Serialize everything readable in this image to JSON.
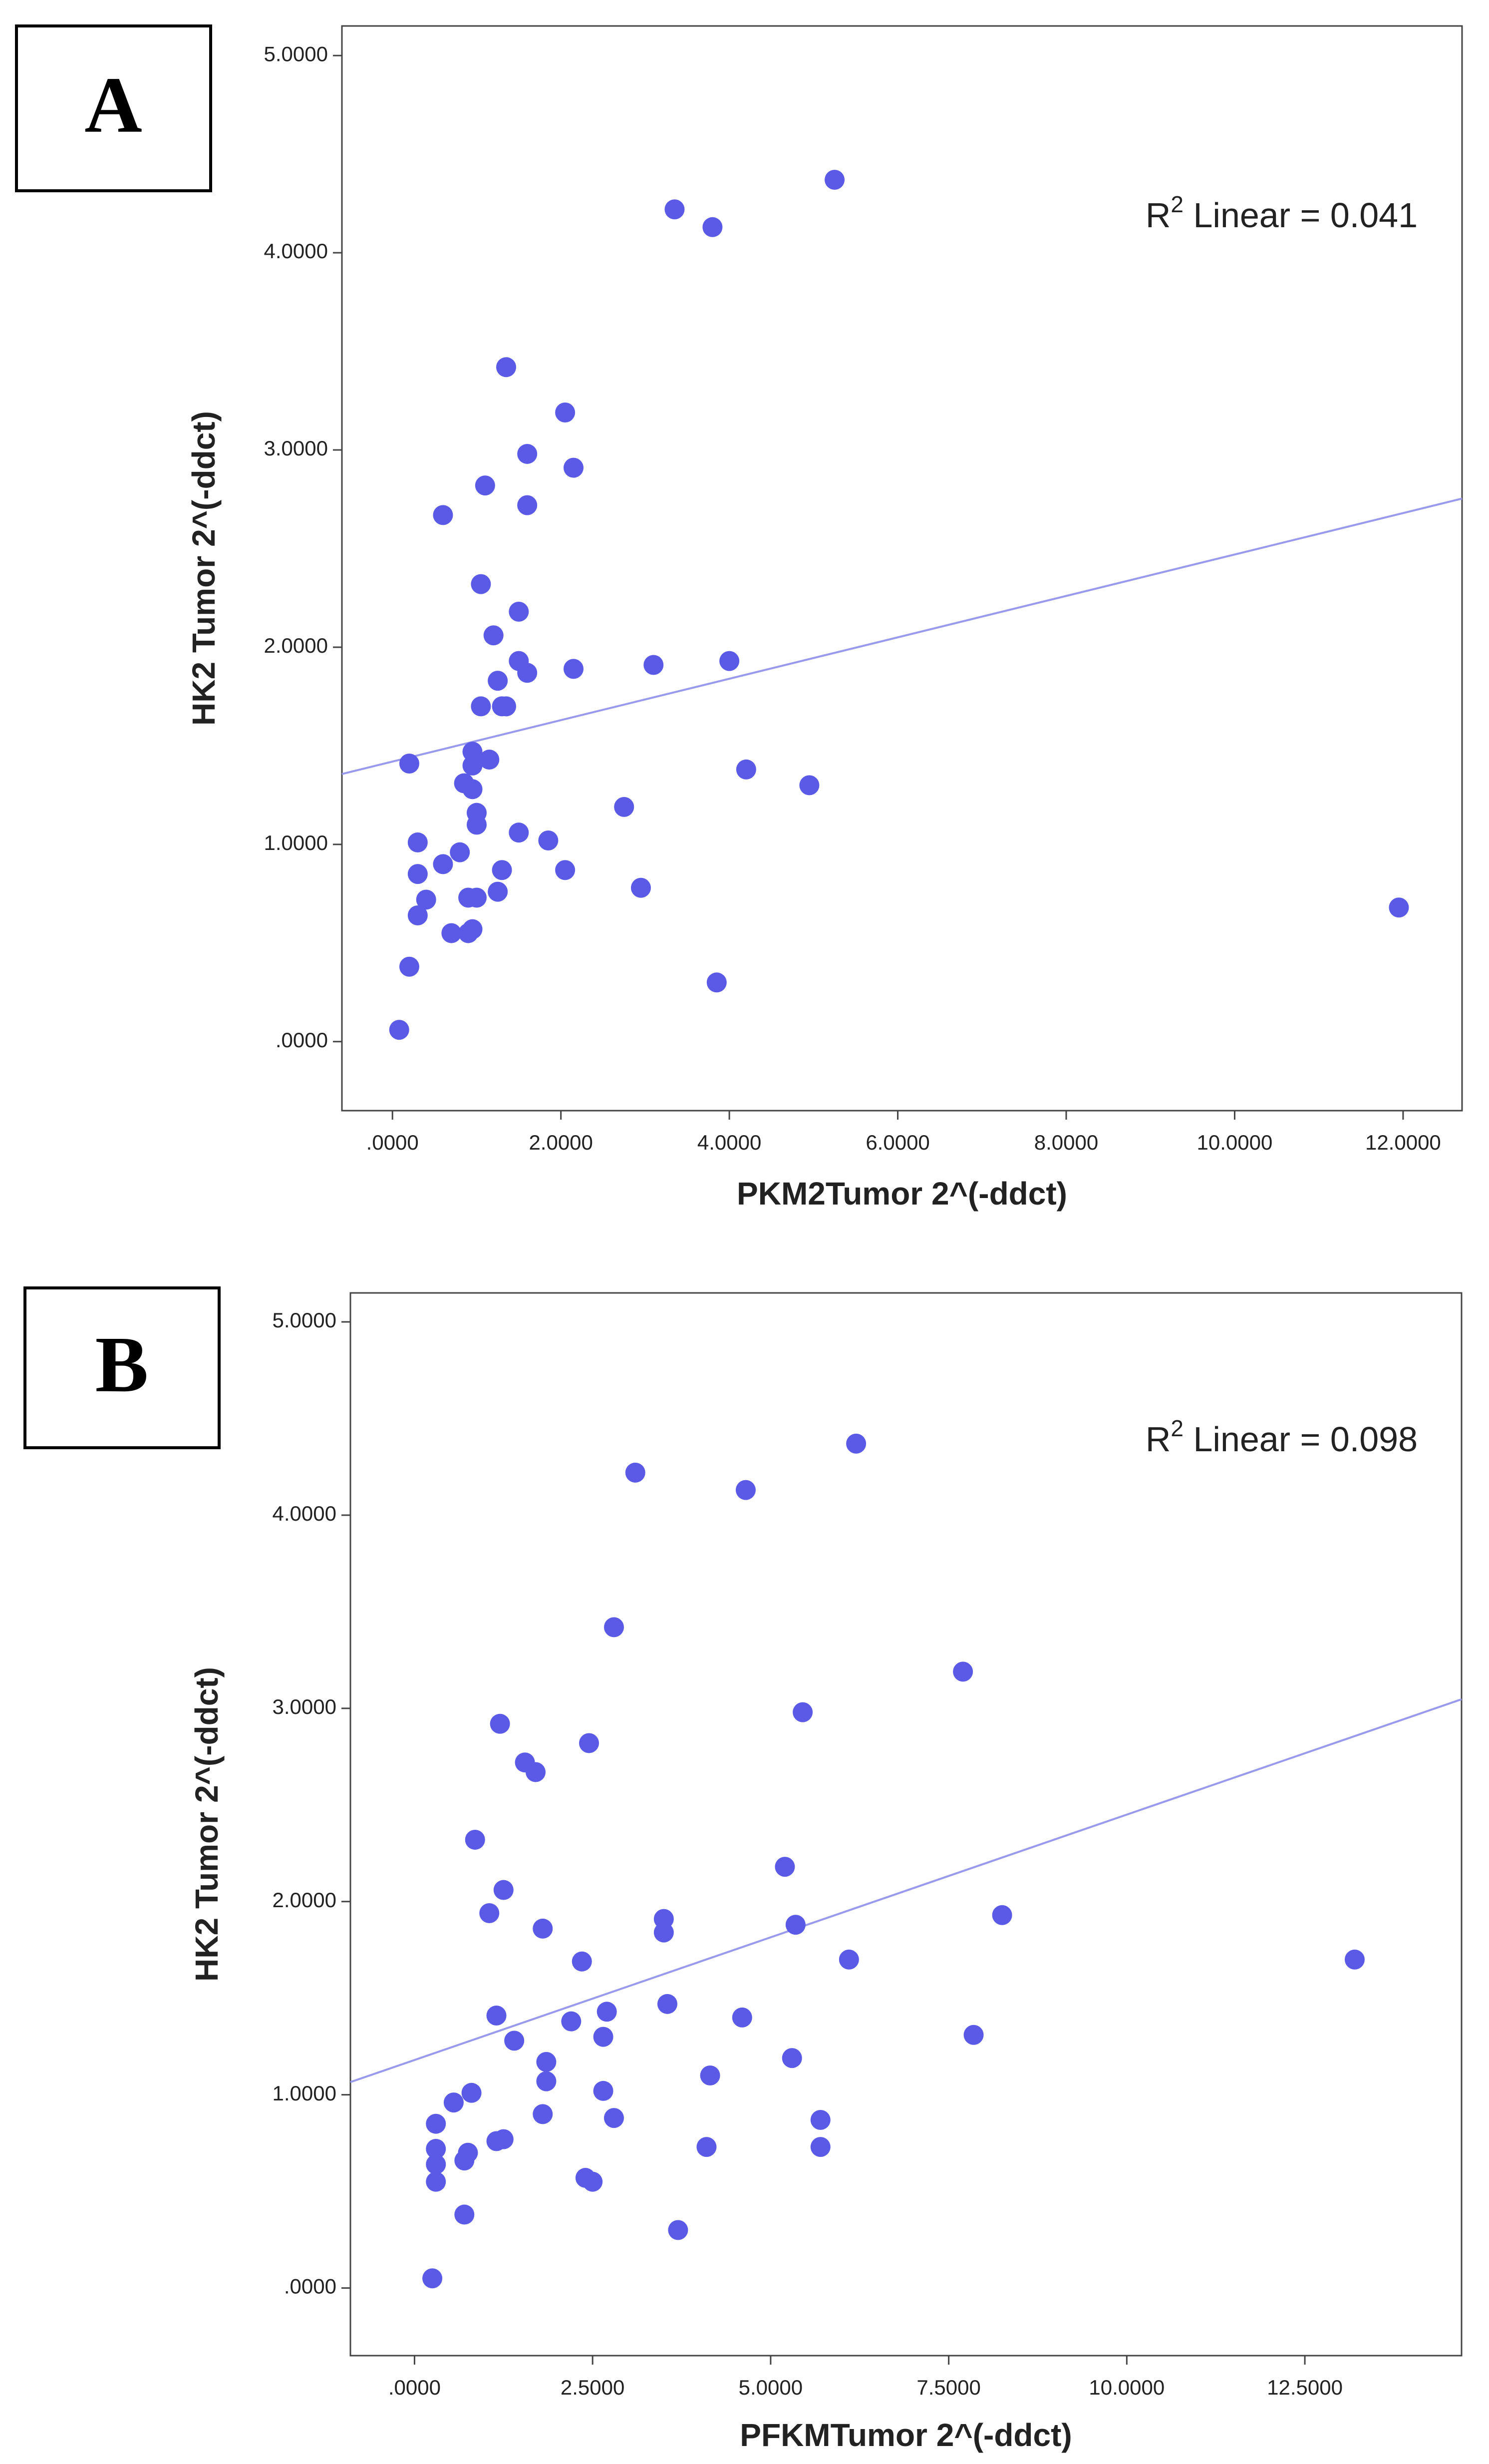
{
  "chart_data": [
    {
      "type": "scatter",
      "panel_label": "A",
      "xlabel": "PKM2Tumor 2^(-ddct)",
      "ylabel": "HK2 Tumor 2^(-ddct)",
      "annotation": {
        "prefix": "R",
        "superscript": "2",
        "text": " Linear = 0.041"
      },
      "xlim": [
        -0.6,
        12.7
      ],
      "ylim": [
        -0.35,
        5.15
      ],
      "xticks": [
        0,
        2,
        4,
        6,
        8,
        10,
        12
      ],
      "xtick_labels": [
        ".0000",
        "2.0000",
        "4.0000",
        "6.0000",
        "8.0000",
        "10.0000",
        "12.0000"
      ],
      "yticks": [
        0,
        1,
        2,
        3,
        4,
        5
      ],
      "ytick_labels": [
        ".0000",
        "1.0000",
        "2.0000",
        "3.0000",
        "4.0000",
        "5.0000"
      ],
      "marker_color": "#5a5ae6",
      "fit_line": {
        "intercept": 1.42,
        "slope": 0.105,
        "color": "#9999ee"
      },
      "points": [
        [
          0.08,
          0.06
        ],
        [
          0.2,
          0.38
        ],
        [
          0.2,
          1.41
        ],
        [
          0.3,
          0.64
        ],
        [
          0.3,
          0.85
        ],
        [
          0.3,
          1.01
        ],
        [
          0.4,
          0.72
        ],
        [
          0.6,
          0.9
        ],
        [
          0.6,
          2.67
        ],
        [
          0.7,
          0.55
        ],
        [
          0.8,
          0.96
        ],
        [
          0.85,
          1.31
        ],
        [
          0.9,
          0.55
        ],
        [
          0.9,
          0.73
        ],
        [
          0.95,
          1.28
        ],
        [
          0.95,
          1.4
        ],
        [
          0.95,
          1.47
        ],
        [
          0.95,
          0.57
        ],
        [
          1.0,
          0.73
        ],
        [
          1.0,
          1.16
        ],
        [
          1.0,
          1.1
        ],
        [
          1.05,
          1.7
        ],
        [
          1.05,
          2.32
        ],
        [
          1.1,
          2.82
        ],
        [
          1.15,
          1.43
        ],
        [
          1.2,
          2.06
        ],
        [
          1.25,
          0.76
        ],
        [
          1.25,
          1.83
        ],
        [
          1.3,
          1.7
        ],
        [
          1.3,
          0.87
        ],
        [
          1.35,
          1.7
        ],
        [
          1.35,
          3.42
        ],
        [
          1.5,
          2.18
        ],
        [
          1.5,
          1.93
        ],
        [
          1.5,
          1.06
        ],
        [
          1.6,
          2.98
        ],
        [
          1.6,
          2.72
        ],
        [
          1.6,
          1.87
        ],
        [
          1.85,
          1.02
        ],
        [
          2.05,
          3.19
        ],
        [
          2.05,
          0.87
        ],
        [
          2.15,
          2.91
        ],
        [
          2.15,
          1.89
        ],
        [
          2.75,
          1.19
        ],
        [
          2.95,
          0.78
        ],
        [
          3.1,
          1.91
        ],
        [
          3.35,
          4.22
        ],
        [
          3.8,
          4.13
        ],
        [
          3.85,
          0.3
        ],
        [
          4.0,
          1.93
        ],
        [
          4.2,
          1.38
        ],
        [
          4.95,
          1.3
        ],
        [
          5.25,
          4.37
        ],
        [
          11.95,
          0.68
        ]
      ]
    },
    {
      "type": "scatter",
      "panel_label": "B",
      "xlabel": "PFKMTumor 2^(-ddct)",
      "ylabel": "HK2 Tumor 2^(-ddct)",
      "annotation": {
        "prefix": "R",
        "superscript": "2",
        "text": " Linear = 0.098"
      },
      "xlim": [
        -0.9,
        14.7
      ],
      "ylim": [
        -0.35,
        5.15
      ],
      "xticks": [
        0,
        2.5,
        5,
        7.5,
        10,
        12.5
      ],
      "xtick_labels": [
        ".0000",
        "2.5000",
        "5.0000",
        "7.5000",
        "10.0000",
        "12.5000"
      ],
      "yticks": [
        0,
        1,
        2,
        3,
        4,
        5
      ],
      "ytick_labels": [
        ".0000",
        "1.0000",
        "2.0000",
        "3.0000",
        "4.0000",
        "5.0000"
      ],
      "marker_color": "#5a5ae6",
      "fit_line": {
        "intercept": 1.18,
        "slope": 0.127,
        "color": "#9999ee"
      },
      "points": [
        [
          0.25,
          0.05
        ],
        [
          0.3,
          0.55
        ],
        [
          0.3,
          0.64
        ],
        [
          0.3,
          0.72
        ],
        [
          0.3,
          0.85
        ],
        [
          0.55,
          0.96
        ],
        [
          0.7,
          0.66
        ],
        [
          0.7,
          0.38
        ],
        [
          0.75,
          0.7
        ],
        [
          0.8,
          1.01
        ],
        [
          0.85,
          2.32
        ],
        [
          1.05,
          1.94
        ],
        [
          1.15,
          0.76
        ],
        [
          1.15,
          1.41
        ],
        [
          1.2,
          2.92
        ],
        [
          1.25,
          0.77
        ],
        [
          1.25,
          2.06
        ],
        [
          1.4,
          1.28
        ],
        [
          1.55,
          2.72
        ],
        [
          1.7,
          2.67
        ],
        [
          1.8,
          0.9
        ],
        [
          1.8,
          1.86
        ],
        [
          1.85,
          1.07
        ],
        [
          1.85,
          1.17
        ],
        [
          2.2,
          1.38
        ],
        [
          2.35,
          1.69
        ],
        [
          2.4,
          0.57
        ],
        [
          2.45,
          2.82
        ],
        [
          2.5,
          0.55
        ],
        [
          2.65,
          1.02
        ],
        [
          2.65,
          1.3
        ],
        [
          2.7,
          1.43
        ],
        [
          2.8,
          0.88
        ],
        [
          2.8,
          3.42
        ],
        [
          3.1,
          4.22
        ],
        [
          3.5,
          1.84
        ],
        [
          3.5,
          1.91
        ],
        [
          3.55,
          1.47
        ],
        [
          3.7,
          0.3
        ],
        [
          4.1,
          0.73
        ],
        [
          4.15,
          1.1
        ],
        [
          4.6,
          1.4
        ],
        [
          4.65,
          4.13
        ],
        [
          5.2,
          2.18
        ],
        [
          5.3,
          1.19
        ],
        [
          5.35,
          1.88
        ],
        [
          5.45,
          2.98
        ],
        [
          5.7,
          0.73
        ],
        [
          5.7,
          0.87
        ],
        [
          6.1,
          1.7
        ],
        [
          6.2,
          4.37
        ],
        [
          7.7,
          3.19
        ],
        [
          7.85,
          1.31
        ],
        [
          8.25,
          1.93
        ],
        [
          13.2,
          1.7
        ]
      ]
    }
  ]
}
